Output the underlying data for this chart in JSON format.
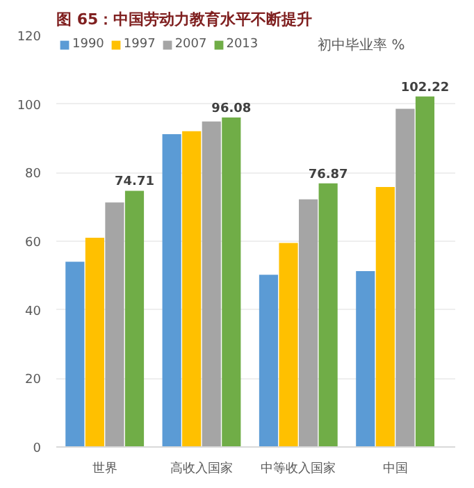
{
  "chart_data": {
    "type": "bar",
    "title": "图 65：中国劳动力教育水平不断提升",
    "annotations": [
      "初中毕业率 %"
    ],
    "categories": [
      "世界",
      "高收入国家",
      "中等收入国家",
      "中国"
    ],
    "series": [
      {
        "name": "1990",
        "color": "#5b9bd5",
        "values": [
          54.0,
          91.2,
          50.2,
          51.3
        ]
      },
      {
        "name": "1997",
        "color": "#ffc000",
        "values": [
          61.0,
          92.1,
          59.5,
          75.8
        ]
      },
      {
        "name": "2007",
        "color": "#a5a5a5",
        "values": [
          71.3,
          94.9,
          72.2,
          98.6
        ]
      },
      {
        "name": "2013",
        "color": "#70ad47",
        "values": [
          74.71,
          96.08,
          76.87,
          102.22
        ],
        "value_labels": [
          "74.71",
          "96.08",
          "76.87",
          "102.22"
        ]
      }
    ],
    "ylim": [
      0,
      120
    ],
    "yticks": [
      0,
      20,
      40,
      60,
      80,
      100,
      120
    ],
    "grid": "y",
    "legend": "top left"
  }
}
